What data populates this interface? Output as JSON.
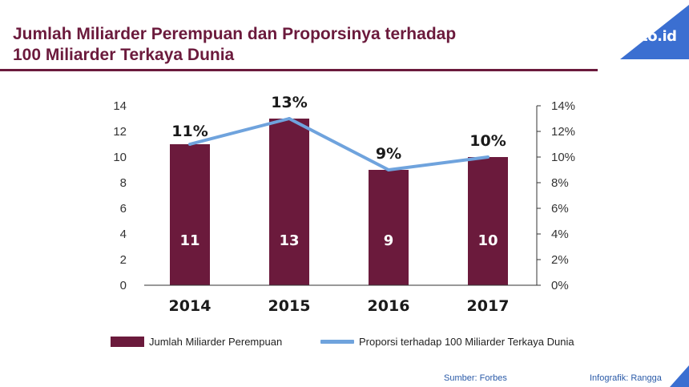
{
  "title": {
    "line1": "Jumlah Miliarder Perempuan dan Proporsinya terhadap",
    "line2": "100 Miliarder Terkaya Dunia"
  },
  "logo": {
    "text": "tirto.id",
    "icon": "tirto-logo-icon"
  },
  "colors": {
    "brand": "#6b1a3c",
    "bar": "#6b1a3c",
    "line": "#6fa3dd",
    "logo_bg": "#3b6fd1",
    "footer_text": "#2a5aa8"
  },
  "chart_data": {
    "type": "bar",
    "categories": [
      "2014",
      "2015",
      "2016",
      "2017"
    ],
    "series": [
      {
        "name": "Jumlah Miliarder Perempuan",
        "kind": "bar",
        "axis": "left",
        "values": [
          11,
          13,
          9,
          10
        ],
        "labels": [
          "11",
          "13",
          "9",
          "10"
        ]
      },
      {
        "name": "Proporsi terhadap 100 Miliarder Terkaya Dunia",
        "kind": "line",
        "axis": "right",
        "values": [
          11,
          13,
          9,
          10
        ],
        "labels": [
          "11%",
          "13%",
          "9%",
          "10%"
        ]
      }
    ],
    "left_axis": {
      "ylim": [
        0,
        14
      ],
      "ticks": [
        "0",
        "2",
        "4",
        "6",
        "8",
        "10",
        "12",
        "14"
      ]
    },
    "right_axis": {
      "ylim": [
        0,
        14
      ],
      "ticks": [
        "0%",
        "2%",
        "4%",
        "6%",
        "8%",
        "10%",
        "12%",
        "14%"
      ]
    },
    "grid": false,
    "legend_position": "bottom"
  },
  "legend": {
    "bar_label": "Jumlah Miliarder Perempuan",
    "line_label": "Proporsi terhadap 100 Miliarder Terkaya Dunia"
  },
  "footer": {
    "source": "Sumber: Forbes",
    "credit": "Infografik: Rangga"
  }
}
